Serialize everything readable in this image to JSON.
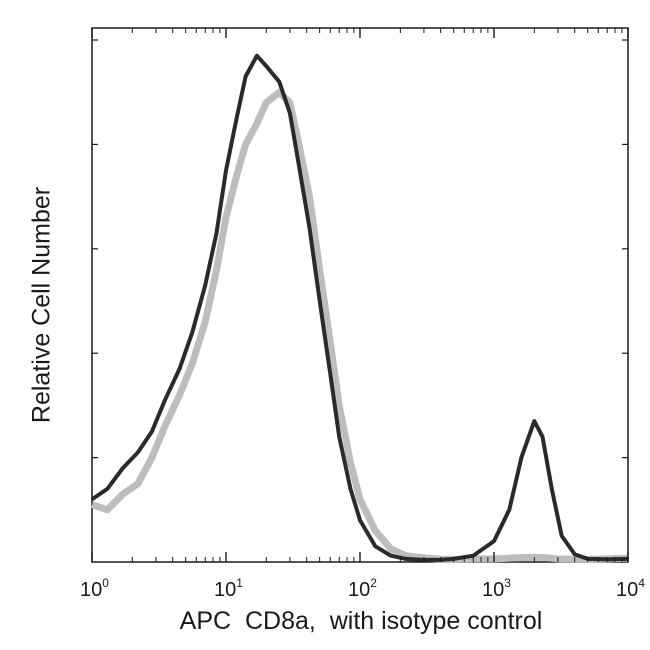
{
  "chart_data": {
    "type": "area",
    "title": "",
    "xlabel": "APC  CD8a,  with isotype control",
    "ylabel": "Relative Cell Number",
    "xscale": "log",
    "xlim": [
      1,
      10000
    ],
    "ylim": [
      0,
      100
    ],
    "x_ticks": [
      {
        "base": "10",
        "exp": "0",
        "value": 1
      },
      {
        "base": "10",
        "exp": "1",
        "value": 10
      },
      {
        "base": "10",
        "exp": "2",
        "value": 100
      },
      {
        "base": "10",
        "exp": "3",
        "value": 1000
      },
      {
        "base": "10",
        "exp": "4",
        "value": 10000
      }
    ],
    "series": [
      {
        "color": "#bdbdbd",
        "x": [
          1,
          1.3,
          1.7,
          2.2,
          2.8,
          3.5,
          4.5,
          5.6,
          7,
          8.5,
          10,
          12,
          14,
          17,
          20,
          25,
          30,
          35,
          42,
          50,
          60,
          70,
          85,
          100,
          130,
          170,
          220,
          300,
          400,
          500,
          700,
          1000,
          1500,
          2000,
          2500,
          3000,
          5000,
          7000,
          10000
        ],
        "values": [
          11,
          10,
          13,
          15,
          20,
          26,
          32,
          38,
          46,
          56,
          66,
          74,
          80,
          84,
          88,
          90,
          88,
          80,
          70,
          56,
          42,
          30,
          19,
          12,
          6,
          2.5,
          1.2,
          0.8,
          0.5,
          0.5,
          0.6,
          0.6,
          0.8,
          0.9,
          0.8,
          0.6,
          0.5,
          0.6,
          0.7
        ]
      },
      {
        "color": "#2a2a2a",
        "x": [
          1,
          1.3,
          1.7,
          2.2,
          2.8,
          3.5,
          4.5,
          5.6,
          7,
          8.5,
          10,
          12,
          14,
          17,
          20,
          25,
          30,
          35,
          42,
          50,
          60,
          70,
          85,
          100,
          130,
          170,
          220,
          300,
          400,
          500,
          700,
          1000,
          1300,
          1600,
          2000,
          2300,
          2700,
          3200,
          4000,
          5000,
          7000,
          10000
        ],
        "values": [
          12,
          14,
          18,
          21,
          25,
          31,
          37,
          44,
          53,
          63,
          75,
          85,
          93,
          97,
          95,
          92,
          86,
          76,
          64,
          50,
          36,
          24,
          14,
          8,
          3,
          1.2,
          0.6,
          0.4,
          0.4,
          0.6,
          1.2,
          4,
          10,
          20,
          27,
          24,
          14,
          5,
          1.5,
          0.6,
          0.5,
          0.6
        ]
      }
    ]
  }
}
